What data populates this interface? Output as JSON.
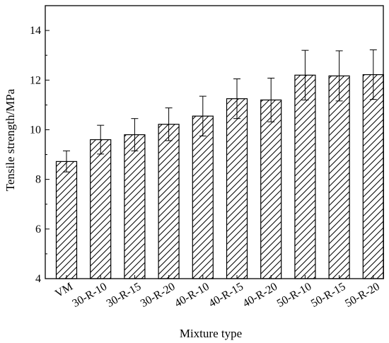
{
  "chart_data": {
    "type": "bar",
    "title": "",
    "xlabel": "Mixture type",
    "ylabel": "Tensile strength/MPa",
    "ylim": [
      4,
      15
    ],
    "yticks": [
      "4",
      "6",
      "8",
      "10",
      "12",
      "14"
    ],
    "grid": false,
    "bar_fill": "diagonal-hatch",
    "categories": [
      "VM",
      "30-R-10",
      "30-R-15",
      "30-R-20",
      "40-R-10",
      "40-R-15",
      "40-R-20",
      "50-R-10",
      "50-R-15",
      "50-R-20"
    ],
    "values": [
      8.72,
      9.6,
      9.8,
      10.22,
      10.55,
      11.25,
      11.2,
      12.2,
      12.17,
      12.22
    ],
    "error_upper": [
      9.15,
      10.18,
      10.45,
      10.88,
      11.35,
      12.05,
      12.08,
      13.2,
      13.18,
      13.22
    ],
    "error_lower": [
      8.3,
      9.02,
      9.15,
      9.56,
      9.75,
      10.45,
      10.32,
      11.2,
      11.16,
      11.22
    ]
  }
}
